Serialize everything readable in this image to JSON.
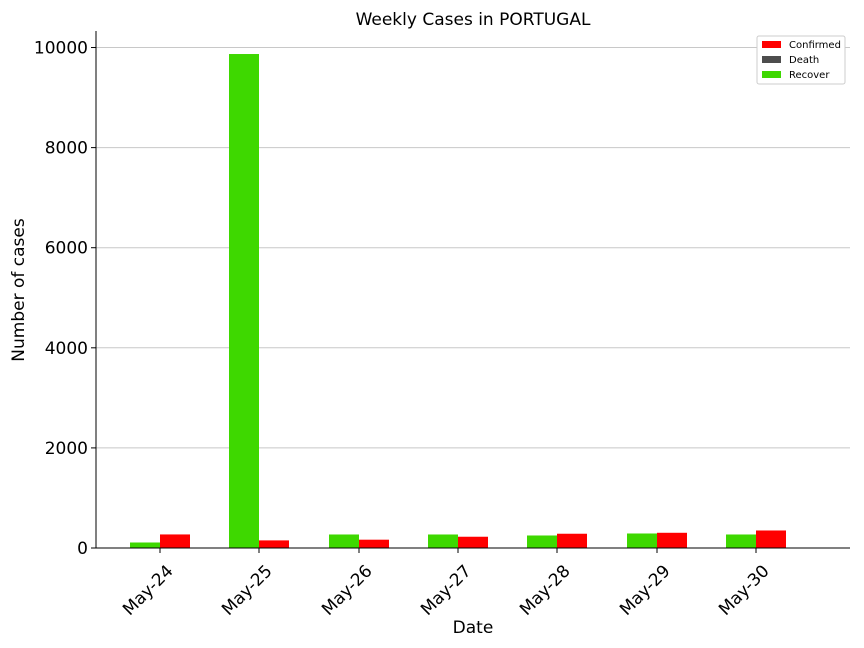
{
  "chart_data": {
    "type": "bar",
    "title": "Weekly Cases in PORTUGAL",
    "xlabel": "Date",
    "ylabel": "Number of cases",
    "categories": [
      "May-24",
      "May-25",
      "May-26",
      "May-27",
      "May-28",
      "May-29",
      "May-30"
    ],
    "series": [
      {
        "name": "Confirmed",
        "color": "#ff0000",
        "values": [
          271,
          152,
          166,
          225,
          285,
          304,
          350
        ]
      },
      {
        "name": "Death",
        "color": "#4d4d4d",
        "values": [
          13,
          14,
          13,
          14,
          13,
          14,
          10
        ]
      },
      {
        "name": "Recover",
        "color": "#3ed800",
        "values": [
          110,
          9870,
          270,
          270,
          250,
          290,
          270
        ]
      }
    ],
    "ylim": [
      0,
      10330
    ],
    "yticks": [
      0,
      2000,
      4000,
      6000,
      8000,
      10000
    ],
    "grid": "horizontal",
    "legend_position": "top-right"
  }
}
